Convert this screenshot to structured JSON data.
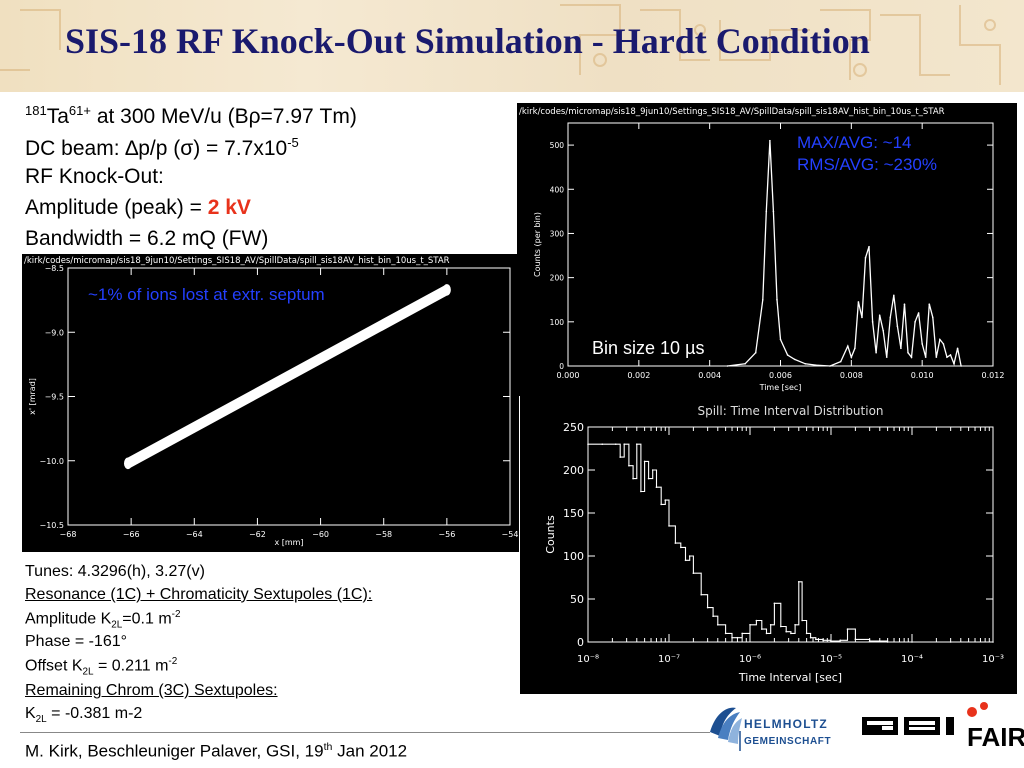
{
  "header": {
    "title": "SIS-18 RF Knock-Out Simulation - Hardt Condition"
  },
  "params": {
    "ion_mass": "181",
    "ion_name": "Ta",
    "ion_charge": "61+",
    "ion_rest": " at 300 MeV/u (B",
    "rho": "ρ",
    "ion_rigidity": "=7.97 Tm)",
    "dc_prefix": "DC beam: ",
    "delta": "∆",
    "dc_mid": "p/p (",
    "sigma": "σ",
    "dc_value": ") = 7.7x10",
    "dc_exp": "-5",
    "rfko": "RF Knock-Out:",
    "amp_label": "Amplitude (peak) = ",
    "amp_value": "2 kV",
    "bandwidth": "Bandwidth = 6.2 mQ (FW)"
  },
  "tunes": {
    "tunes": "Tunes: 4.3296(h), 3.27(v)",
    "resonance": "Resonance (1C) + Chromaticity Sextupoles (1C):",
    "amp_pre": "Amplitude K",
    "amp_sub": "2L",
    "amp_val": "=0.1 m",
    "amp_exp": "-2",
    "phase": "Phase = -161°",
    "offset_pre": "Offset K",
    "offset_sub": "2L",
    "offset_val": " = 0.211 m",
    "offset_exp": "-2",
    "remaining": "Remaining Chrom (3C) Sextupoles:",
    "k_pre": "K",
    "k_sub": "2L",
    "k_val": " = -0.381 m-2"
  },
  "footer": {
    "text_pre": "M. Kirk, Beschleuniger Palaver, GSI, 19",
    "text_sup": "th",
    "text_post": " Jan 2012"
  },
  "logos": {
    "helmholtz_line1": "HELMHOLTZ",
    "helmholtz_line2": "GEMEINSCHAFT",
    "gsi": "GSI",
    "fair": "FAIR"
  },
  "annotations": {
    "max_avg": "MAX/AVG: ~14",
    "rms_avg": "RMS/AVG: ~230%",
    "bin_size_pre": "Bin size 10 ",
    "mu": "µ",
    "bin_size_post": "s",
    "ions_lost": "~1% of ions lost at extr. septum"
  },
  "chart_data": [
    {
      "type": "scatter",
      "plot_path": "/kirk/codes/micromap/sis18_9jun10/Settings_SIS18_AV/SpillData/spill_sis18AV_hist_bin_10us_t_STAR",
      "xlabel": "x [mm]",
      "ylabel": "x' [mrad]",
      "xlim": [
        -68,
        -54
      ],
      "ylim": [
        -10.5,
        -8.5
      ],
      "x_ticks": [
        "-68",
        "-66",
        "-64",
        "-62",
        "-60",
        "-58",
        "-56",
        "-54"
      ],
      "y_ticks": [
        "-8.5",
        "-9.0",
        "-9.5",
        "-10.0",
        "-10.5"
      ],
      "band": {
        "x": [
          -66.1,
          -56.0
        ],
        "y": [
          -10.02,
          -8.67
        ],
        "width": 0.09
      }
    },
    {
      "type": "line",
      "plot_path": "/kirk/codes/micromap/sis18_9jun10/Settings_SIS18_AV/SpillData/spill_sis18AV_hist_bin_10us_t_STAR",
      "xlabel": "Time [sec]",
      "ylabel": "Counts (per bin)",
      "xlim": [
        0,
        0.012
      ],
      "ylim": [
        0,
        550
      ],
      "x_ticks": [
        "0.000",
        "0.002",
        "0.004",
        "0.006",
        "0.008",
        "0.010",
        "0.012"
      ],
      "y_ticks": [
        "0",
        "100",
        "200",
        "300",
        "400",
        "500"
      ],
      "series": [
        {
          "x": [
            0.0045,
            0.005,
            0.0053,
            0.0055,
            0.0056,
            0.0057,
            0.0058,
            0.0059,
            0.006,
            0.0062,
            0.0064,
            0.0067,
            0.007,
            0.0074,
            0.0077,
            0.0079,
            0.008,
            0.0081,
            0.0082,
            0.0083,
            0.0084,
            0.0085,
            0.0086,
            0.0087,
            0.0088,
            0.0089,
            0.009,
            0.0091,
            0.0092,
            0.0093,
            0.0094,
            0.0095,
            0.0096,
            0.0097,
            0.0098,
            0.0099,
            0.01,
            0.0101,
            0.0102,
            0.0103,
            0.0104,
            0.0105,
            0.0106,
            0.0107,
            0.0108,
            0.0109,
            0.011,
            0.0111
          ],
          "y": [
            0,
            5,
            30,
            150,
            350,
            510,
            350,
            150,
            60,
            25,
            15,
            5,
            2,
            0,
            10,
            45,
            20,
            40,
            145,
            110,
            245,
            270,
            100,
            30,
            115,
            80,
            20,
            110,
            160,
            90,
            40,
            140,
            30,
            20,
            100,
            120,
            50,
            20,
            140,
            110,
            20,
            60,
            50,
            20,
            25,
            5,
            40,
            0
          ]
        }
      ]
    },
    {
      "type": "line",
      "title": "Spill: Time Interval Distribution",
      "xlabel": "Time Interval [sec]",
      "ylabel": "Counts",
      "xscale": "log",
      "xlim": [
        1e-08,
        0.001
      ],
      "ylim": [
        0,
        250
      ],
      "x_ticks": [
        "10⁻⁸",
        "10⁻⁷",
        "10⁻⁶",
        "10⁻⁵",
        "10⁻⁴",
        "10⁻³"
      ],
      "y_ticks": [
        "0",
        "50",
        "100",
        "150",
        "200",
        "250"
      ],
      "series": [
        {
          "x": [
            1e-08,
            1.5e-08,
            2.2e-08,
            2.5e-08,
            2.8e-08,
            3.2e-08,
            3.6e-08,
            4e-08,
            4.5e-08,
            5e-08,
            5.6e-08,
            6.3e-08,
            7e-08,
            8e-08,
            9e-08,
            1e-07,
            1.2e-07,
            1.4e-07,
            1.6e-07,
            1.8e-07,
            2e-07,
            2.5e-07,
            3e-07,
            3.5e-07,
            4e-07,
            5e-07,
            6e-07,
            7e-07,
            8e-07,
            1e-06,
            1.2e-06,
            1.4e-06,
            1.6e-06,
            1.8e-06,
            2e-06,
            2.4e-06,
            2.8e-06,
            3.2e-06,
            3.6e-06,
            4e-06,
            4.4e-06,
            5e-06,
            5.6e-06,
            6.5e-06,
            8e-06,
            1e-05,
            1.3e-05,
            1.6e-05,
            2e-05,
            3e-05,
            5e-05,
            0.0001,
            0.0003,
            0.001
          ],
          "y": [
            230,
            230,
            230,
            215,
            230,
            205,
            190,
            230,
            175,
            210,
            190,
            200,
            180,
            160,
            165,
            135,
            115,
            110,
            95,
            100,
            80,
            55,
            40,
            30,
            20,
            10,
            5,
            5,
            10,
            20,
            25,
            15,
            10,
            20,
            45,
            18,
            12,
            10,
            20,
            70,
            25,
            10,
            5,
            3,
            2,
            1,
            2,
            15,
            3,
            1,
            0,
            0,
            0,
            0
          ]
        }
      ]
    }
  ]
}
